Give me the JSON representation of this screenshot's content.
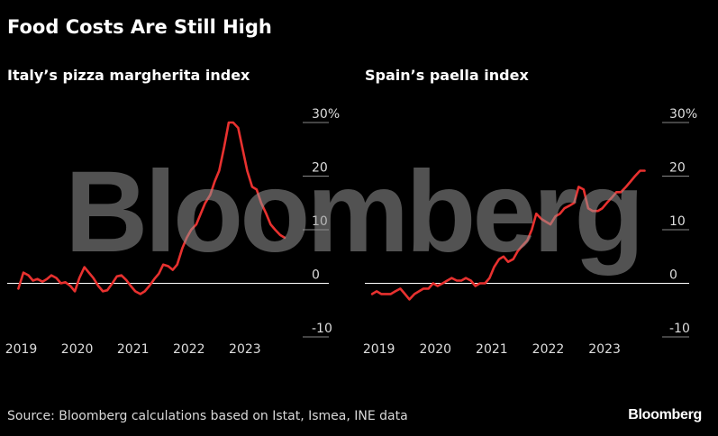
{
  "title": "Food Costs Are Still High",
  "watermark": "Bloomberg",
  "source": "Source: Bloomberg calculations based on Istat, Ismea, INE data",
  "logo": "Bloomberg",
  "colors": {
    "line": "#e8312f",
    "zero": "#ffffff",
    "grid": "#888888"
  },
  "chart_data": [
    {
      "type": "line",
      "title": "Italy’s pizza margherita index",
      "y_tick_labels": [
        "30%",
        "20",
        "10",
        "0",
        "-10"
      ],
      "y_ticks": [
        30,
        20,
        10,
        0,
        -10
      ],
      "ylim": [
        -10,
        30
      ],
      "x_tick_labels": [
        "2019",
        "2020",
        "2021",
        "2022",
        "2023"
      ],
      "x_ticks": [
        2019,
        2020,
        2021,
        2022,
        2023
      ],
      "xlim": [
        2018.75,
        2024.5
      ],
      "x": [
        2018.95,
        2019.04,
        2019.13,
        2019.21,
        2019.29,
        2019.38,
        2019.46,
        2019.54,
        2019.63,
        2019.71,
        2019.79,
        2019.88,
        2019.96,
        2020.04,
        2020.13,
        2020.21,
        2020.29,
        2020.38,
        2020.46,
        2020.54,
        2020.63,
        2020.71,
        2020.79,
        2020.88,
        2020.96,
        2021.04,
        2021.13,
        2021.21,
        2021.29,
        2021.38,
        2021.46,
        2021.54,
        2021.63,
        2021.71,
        2021.79,
        2021.88,
        2021.96,
        2022.04,
        2022.13,
        2022.21,
        2022.29,
        2022.38,
        2022.46,
        2022.54,
        2022.63,
        2022.71,
        2022.79,
        2022.88,
        2022.96,
        2023.04,
        2023.13,
        2023.21,
        2023.29,
        2023.38,
        2023.46,
        2023.54,
        2023.63,
        2023.71
      ],
      "y": [
        -1,
        2,
        1.5,
        0.5,
        0.8,
        0.3,
        0.8,
        1.5,
        1,
        0,
        0.2,
        -0.5,
        -1.5,
        1,
        3,
        2,
        1,
        -0.5,
        -1.5,
        -1.3,
        0,
        1.3,
        1.5,
        0.6,
        -0.5,
        -1.5,
        -2,
        -1.5,
        -0.5,
        0.8,
        1.8,
        3.5,
        3.2,
        2.5,
        3.5,
        6.5,
        8.5,
        10,
        11,
        13,
        15,
        16.5,
        19,
        21,
        25.5,
        30,
        30,
        29,
        25,
        21,
        18,
        17.5,
        15,
        13,
        11,
        10,
        9,
        8.5
      ]
    },
    {
      "type": "line",
      "title": "Spain’s paella index",
      "y_tick_labels": [
        "30%",
        "20",
        "10",
        "0",
        "-10"
      ],
      "y_ticks": [
        30,
        20,
        10,
        0,
        -10
      ],
      "ylim": [
        -10,
        30
      ],
      "x_tick_labels": [
        "2019",
        "2020",
        "2021",
        "2022",
        "2023"
      ],
      "x_ticks": [
        2019,
        2020,
        2021,
        2022,
        2023
      ],
      "xlim": [
        2018.75,
        2024.5
      ],
      "x": [
        2018.88,
        2018.96,
        2019.04,
        2019.13,
        2019.21,
        2019.29,
        2019.38,
        2019.46,
        2019.54,
        2019.63,
        2019.71,
        2019.79,
        2019.88,
        2019.96,
        2020.04,
        2020.13,
        2020.21,
        2020.29,
        2020.38,
        2020.46,
        2020.54,
        2020.63,
        2020.71,
        2020.79,
        2020.88,
        2020.96,
        2021.04,
        2021.13,
        2021.21,
        2021.29,
        2021.38,
        2021.46,
        2021.54,
        2021.63,
        2021.71,
        2021.79,
        2021.88,
        2021.96,
        2022.04,
        2022.13,
        2022.21,
        2022.29,
        2022.38,
        2022.46,
        2022.54,
        2022.63,
        2022.71,
        2022.79,
        2022.88,
        2022.96,
        2023.04,
        2023.13,
        2023.21,
        2023.29,
        2023.38,
        2023.46,
        2023.54,
        2023.63,
        2023.71
      ],
      "y": [
        -2,
        -1.5,
        -2,
        -2,
        -2,
        -1.5,
        -1,
        -2,
        -3,
        -2,
        -1.5,
        -1,
        -1,
        0,
        -0.5,
        0,
        0.5,
        1,
        0.5,
        0.5,
        1,
        0.5,
        -0.5,
        0,
        0,
        1,
        3,
        4.5,
        5,
        4,
        4.5,
        6,
        7,
        8,
        10,
        13,
        12,
        11.5,
        11,
        12.5,
        13,
        14,
        14.5,
        15,
        18,
        17.5,
        14,
        13.5,
        13.5,
        14,
        15,
        16,
        17,
        17,
        18,
        19,
        20,
        21,
        21
      ]
    }
  ]
}
